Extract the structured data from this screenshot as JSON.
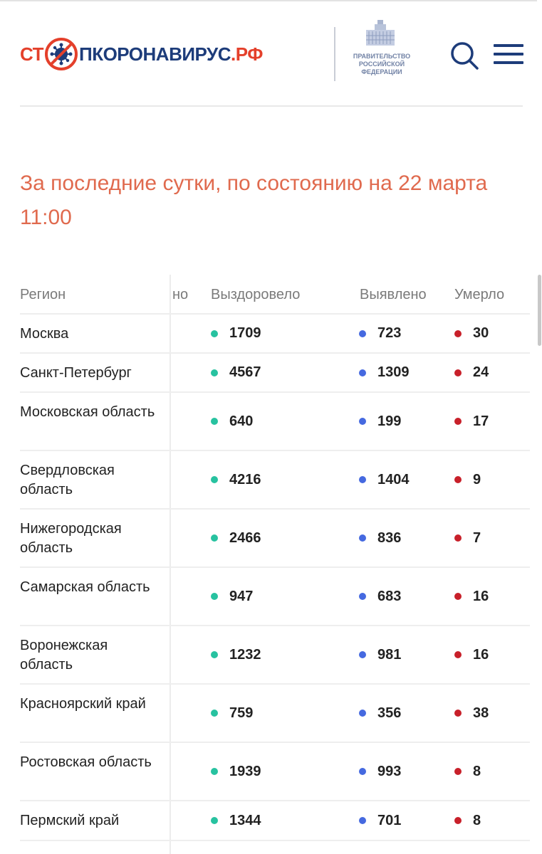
{
  "header": {
    "logo": {
      "part1": "СТ",
      "part2": "ПКОРОНАВИРУС",
      "part3": ".РФ"
    },
    "gov_text": [
      "ПРАВИТЕЛЬСТВО",
      "РОССИЙСКОЙ",
      "ФЕДЕРАЦИИ"
    ],
    "icons": {
      "search": "search-icon",
      "menu": "menu-icon",
      "virus": "virus-stop-icon",
      "gov": "government-building-icon"
    }
  },
  "colors": {
    "accent_red": "#e4402b",
    "brand_blue": "#1d3c7a",
    "heading": "#e06a4e",
    "recovered": "#27c2a0",
    "detected": "#4569e0",
    "died": "#c8202a"
  },
  "heading": "За последние сутки, по состоянию на 22 марта 11:00",
  "table": {
    "headers": {
      "region": "Регион",
      "partial": "но",
      "recovered": "Выздоровело",
      "detected": "Выявлено",
      "died": "Умерло"
    },
    "rows": [
      {
        "region": "Москва",
        "recovered": "1709",
        "detected": "723",
        "died": "30"
      },
      {
        "region": "Санкт-Петербург",
        "recovered": "4567",
        "detected": "1309",
        "died": "24"
      },
      {
        "region": "Московская область",
        "recovered": "640",
        "detected": "199",
        "died": "17"
      },
      {
        "region": "Свердловская область",
        "recovered": "4216",
        "detected": "1404",
        "died": "9"
      },
      {
        "region": "Нижегородская область",
        "recovered": "2466",
        "detected": "836",
        "died": "7"
      },
      {
        "region": "Самарская область",
        "recovered": "947",
        "detected": "683",
        "died": "16"
      },
      {
        "region": "Воронежская область",
        "recovered": "1232",
        "detected": "981",
        "died": "16"
      },
      {
        "region": "Красноярский край",
        "recovered": "759",
        "detected": "356",
        "died": "38"
      },
      {
        "region": "Ростовская область",
        "recovered": "1939",
        "detected": "993",
        "died": "8"
      },
      {
        "region": "Пермский край",
        "recovered": "1344",
        "detected": "701",
        "died": "8"
      }
    ]
  }
}
